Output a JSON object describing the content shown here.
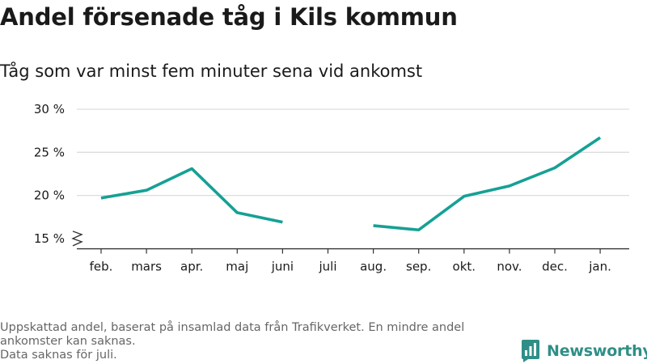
{
  "header": {
    "title": "Andel försenade tåg i Kils kommun",
    "subtitle": "Tåg som var minst fem minuter sena vid ankomst"
  },
  "footer": {
    "line1": "Uppskattad andel, baserat på insamlad data från Trafikverket. En mindre andel",
    "line2": "ankomster kan saknas.",
    "line3": "Data saknas för juli."
  },
  "brand": {
    "name": "Newsworthy",
    "logo_icon": "bar-chart-logo-icon",
    "color": "#2f8f87"
  },
  "chart_data": {
    "type": "line",
    "categories": [
      "feb.",
      "mars",
      "apr.",
      "maj",
      "juni",
      "juli",
      "aug.",
      "sep.",
      "okt.",
      "nov.",
      "dec.",
      "jan."
    ],
    "series": [
      {
        "values": [
          19.7,
          20.6,
          23.1,
          18.0,
          16.9,
          null,
          16.5,
          16.0,
          19.9,
          21.1,
          23.2,
          26.7
        ]
      }
    ],
    "ylim": [
      14,
      30
    ],
    "yticks": [
      15,
      20,
      25,
      30
    ],
    "ytick_labels": [
      "15 %",
      "20 %",
      "25 %",
      "30 %"
    ],
    "axis_break": true,
    "grid": true,
    "line_color": "#16a095",
    "grid_color": "#dddddd",
    "xlabel": "",
    "ylabel": ""
  }
}
